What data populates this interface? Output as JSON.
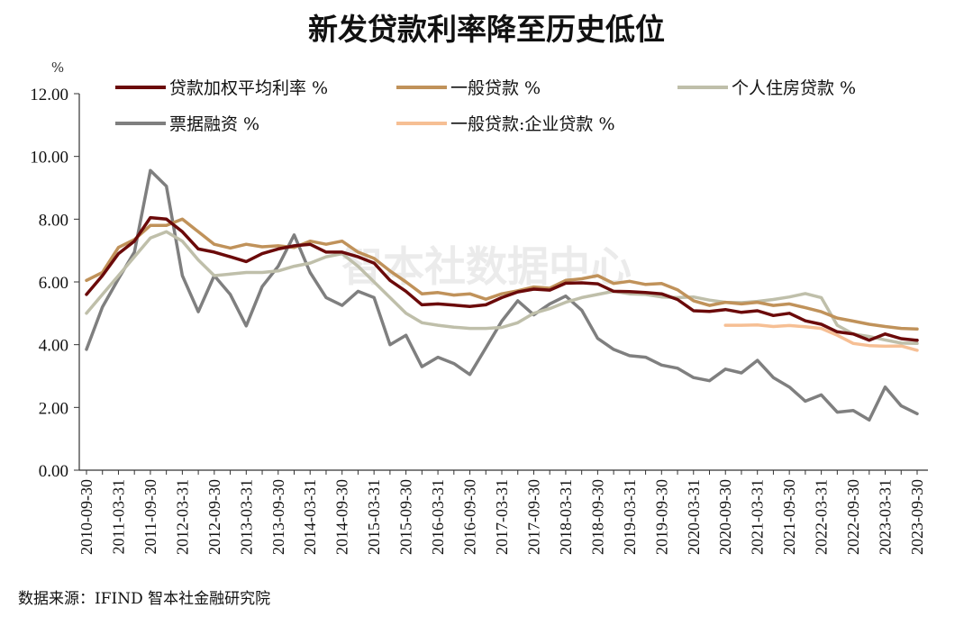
{
  "chart_data": {
    "type": "line",
    "title": "新发贷款利率降至历史低位",
    "ylabel": "%",
    "xlabel": "",
    "ylim": [
      0,
      12
    ],
    "yticks": [
      "0.00",
      "2.00",
      "4.00",
      "6.00",
      "8.00",
      "10.00",
      "12.00"
    ],
    "x_tick_labels": [
      "2010-09-30",
      "2011-03-31",
      "2011-09-30",
      "2012-03-31",
      "2012-09-30",
      "2013-03-31",
      "2013-09-30",
      "2014-03-31",
      "2014-09-30",
      "2015-03-31",
      "2015-09-30",
      "2016-03-31",
      "2016-09-30",
      "2017-03-31",
      "2017-09-30",
      "2018-03-31",
      "2018-09-30",
      "2019-03-31",
      "2019-09-30",
      "2020-03-31",
      "2020-09-30",
      "2021-03-31",
      "2021-09-30",
      "2022-03-31",
      "2022-09-30",
      "2023-03-31",
      "2023-09-30"
    ],
    "x": [
      "2010-09",
      "2010-12",
      "2011-03",
      "2011-06",
      "2011-09",
      "2011-12",
      "2012-03",
      "2012-06",
      "2012-09",
      "2012-12",
      "2013-03",
      "2013-06",
      "2013-09",
      "2013-12",
      "2014-03",
      "2014-06",
      "2014-09",
      "2014-12",
      "2015-03",
      "2015-06",
      "2015-09",
      "2015-12",
      "2016-03",
      "2016-06",
      "2016-09",
      "2016-12",
      "2017-03",
      "2017-06",
      "2017-09",
      "2017-12",
      "2018-03",
      "2018-06",
      "2018-09",
      "2018-12",
      "2019-03",
      "2019-06",
      "2019-09",
      "2019-12",
      "2020-03",
      "2020-06",
      "2020-09",
      "2020-12",
      "2021-03",
      "2021-06",
      "2021-09",
      "2021-12",
      "2022-03",
      "2022-06",
      "2022-09",
      "2022-12",
      "2023-03",
      "2023-06",
      "2023-09"
    ],
    "series": [
      {
        "name": "贷款加权平均利率 %",
        "color": "#6b0a0a",
        "width": 3.5,
        "values": [
          5.6,
          6.2,
          6.9,
          7.3,
          8.05,
          8.0,
          7.6,
          7.05,
          6.95,
          6.8,
          6.65,
          6.9,
          7.05,
          7.15,
          7.2,
          6.95,
          6.95,
          6.8,
          6.6,
          6.05,
          5.7,
          5.27,
          5.3,
          5.26,
          5.22,
          5.27,
          5.5,
          5.68,
          5.77,
          5.74,
          5.96,
          5.97,
          5.94,
          5.7,
          5.69,
          5.66,
          5.62,
          5.44,
          5.08,
          5.06,
          5.12,
          5.03,
          5.08,
          4.93,
          5.0,
          4.76,
          4.65,
          4.41,
          4.34,
          4.14,
          4.34,
          4.19,
          4.14
        ]
      },
      {
        "name": "一般贷款 %",
        "color": "#c0925a",
        "width": 3.5,
        "values": [
          6.05,
          6.3,
          7.1,
          7.35,
          7.8,
          7.8,
          8.0,
          7.6,
          7.2,
          7.08,
          7.2,
          7.12,
          7.15,
          7.1,
          7.3,
          7.2,
          7.3,
          6.95,
          6.75,
          6.35,
          6.0,
          5.62,
          5.66,
          5.58,
          5.62,
          5.45,
          5.62,
          5.72,
          5.84,
          5.8,
          6.05,
          6.1,
          6.2,
          5.95,
          6.02,
          5.92,
          5.95,
          5.75,
          5.4,
          5.25,
          5.35,
          5.3,
          5.35,
          5.25,
          5.3,
          5.18,
          5.05,
          4.85,
          4.75,
          4.65,
          4.58,
          4.52,
          4.5
        ]
      },
      {
        "name": "个人住房贷款 %",
        "color": "#bfbfaa",
        "width": 3.5,
        "values": [
          5.0,
          5.6,
          6.2,
          6.8,
          7.4,
          7.6,
          7.3,
          6.7,
          6.2,
          6.25,
          6.3,
          6.3,
          6.35,
          6.5,
          6.6,
          6.8,
          6.9,
          6.5,
          6.0,
          5.5,
          5.0,
          4.7,
          4.62,
          4.56,
          4.52,
          4.52,
          4.55,
          4.7,
          5.0,
          5.15,
          5.35,
          5.5,
          5.6,
          5.7,
          5.62,
          5.6,
          5.52,
          5.5,
          5.52,
          5.42,
          5.35,
          5.34,
          5.38,
          5.44,
          5.52,
          5.63,
          5.5,
          4.62,
          4.34,
          4.26,
          4.15,
          4.05,
          4.04
        ]
      },
      {
        "name": "票据融资 %",
        "color": "#7f7f7f",
        "width": 3.5,
        "values": [
          3.85,
          5.2,
          6.1,
          6.95,
          9.55,
          9.05,
          6.2,
          5.05,
          6.2,
          5.6,
          4.6,
          5.85,
          6.5,
          7.5,
          6.3,
          5.5,
          5.25,
          5.7,
          5.5,
          4.0,
          4.3,
          3.3,
          3.6,
          3.4,
          3.05,
          3.9,
          4.75,
          5.4,
          4.95,
          5.3,
          5.55,
          5.1,
          4.2,
          3.85,
          3.65,
          3.6,
          3.35,
          3.25,
          2.95,
          2.85,
          3.22,
          3.1,
          3.5,
          2.95,
          2.65,
          2.2,
          2.4,
          1.85,
          1.9,
          1.6,
          2.65,
          2.05,
          1.8
        ]
      },
      {
        "name": "一般贷款:企业贷款 %",
        "color": "#f6bf94",
        "width": 3.5,
        "values": [
          null,
          null,
          null,
          null,
          null,
          null,
          null,
          null,
          null,
          null,
          null,
          null,
          null,
          null,
          null,
          null,
          null,
          null,
          null,
          null,
          null,
          null,
          null,
          null,
          null,
          null,
          null,
          null,
          null,
          null,
          null,
          null,
          null,
          null,
          null,
          null,
          null,
          null,
          null,
          null,
          4.62,
          4.62,
          4.63,
          4.58,
          4.61,
          4.57,
          4.52,
          4.3,
          4.04,
          3.97,
          3.95,
          3.96,
          3.82
        ]
      }
    ],
    "legend_position": "top",
    "grid": false
  },
  "source_text": "数据来源：IFIND 智本社金融研究院",
  "watermark_text": "智本社数据中心"
}
